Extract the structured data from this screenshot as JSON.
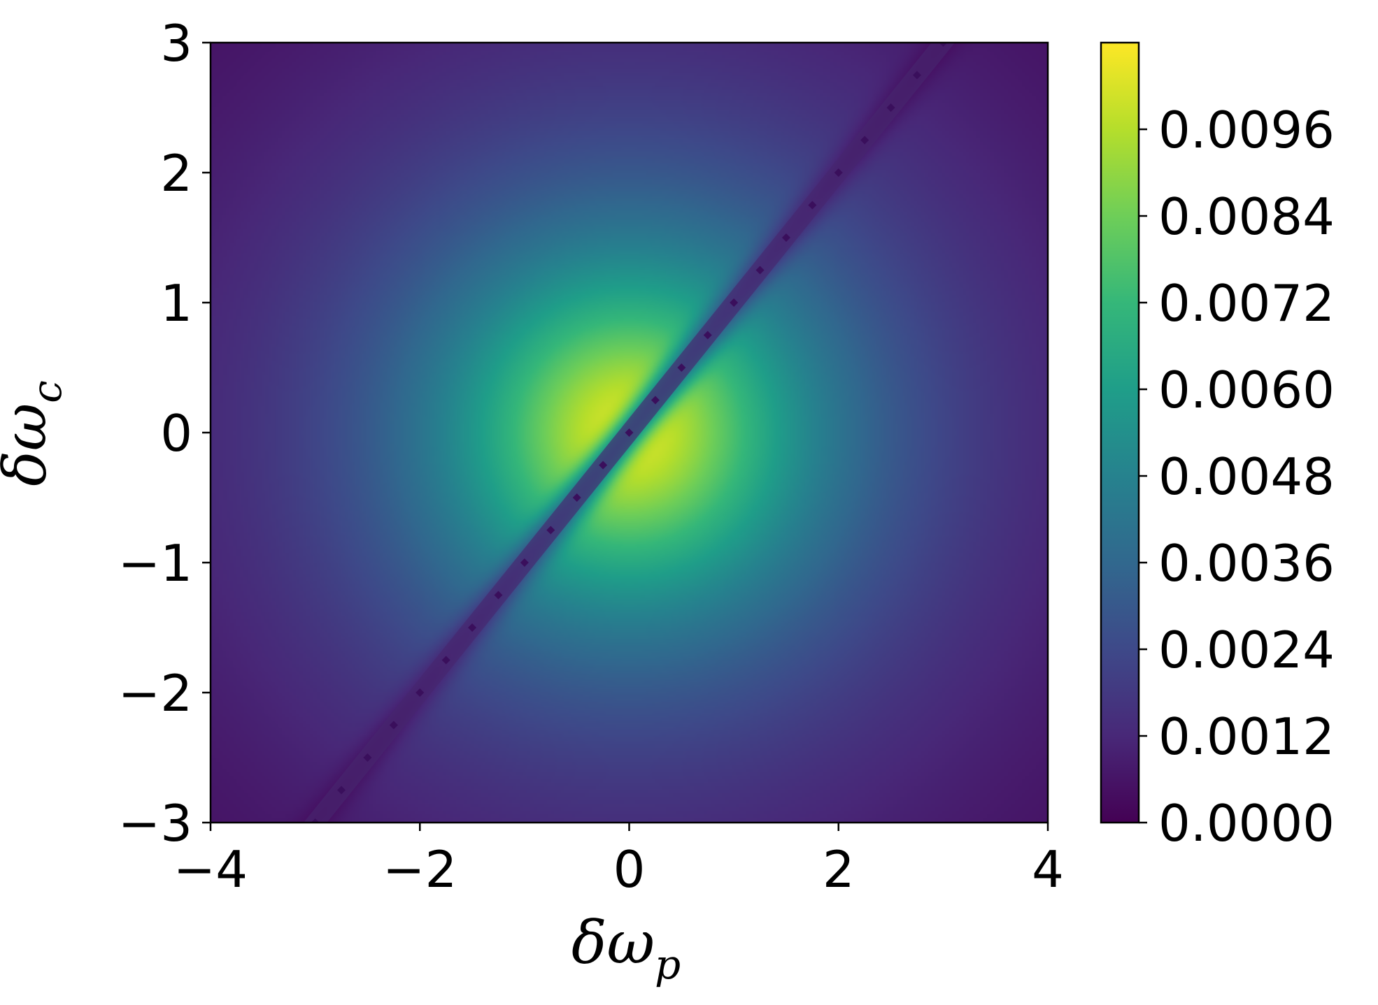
{
  "chart_data": {
    "type": "heatmap",
    "title": "",
    "xlabel": "δω",
    "xlabel_subscript": "p",
    "ylabel": "δω",
    "ylabel_subscript": "c",
    "xlim": [
      -4,
      4
    ],
    "ylim": [
      -3,
      3
    ],
    "x_ticks": [
      -4,
      -2,
      0,
      2,
      4
    ],
    "y_ticks": [
      -3,
      -2,
      -1,
      0,
      1,
      2,
      3
    ],
    "x_tick_labels": [
      "−4",
      "−2",
      "0",
      "2",
      "4"
    ],
    "y_tick_labels": [
      "−3",
      "−2",
      "−1",
      "0",
      "1",
      "2",
      "3"
    ],
    "colormap": "viridis",
    "colorbar": {
      "range": [
        0,
        0.0108
      ],
      "ticks": [
        0.0,
        0.0012,
        0.0024,
        0.0036,
        0.0048,
        0.006,
        0.0072,
        0.0084,
        0.0096
      ],
      "tick_labels": [
        "0.0000",
        "0.0012",
        "0.0024",
        "0.0036",
        "0.0048",
        "0.0060",
        "0.0072",
        "0.0084",
        "0.0096"
      ]
    },
    "field": {
      "peak_value": 0.0108,
      "peak_center": [
        0,
        0
      ],
      "description_of_shape": "broad maximum at origin decaying outward; near-zero line along y = x"
    },
    "dark_line": {
      "slope": 1,
      "intercept": 0
    },
    "grid": false
  },
  "colors": {
    "axis": "#000000",
    "background": "#ffffff"
  }
}
